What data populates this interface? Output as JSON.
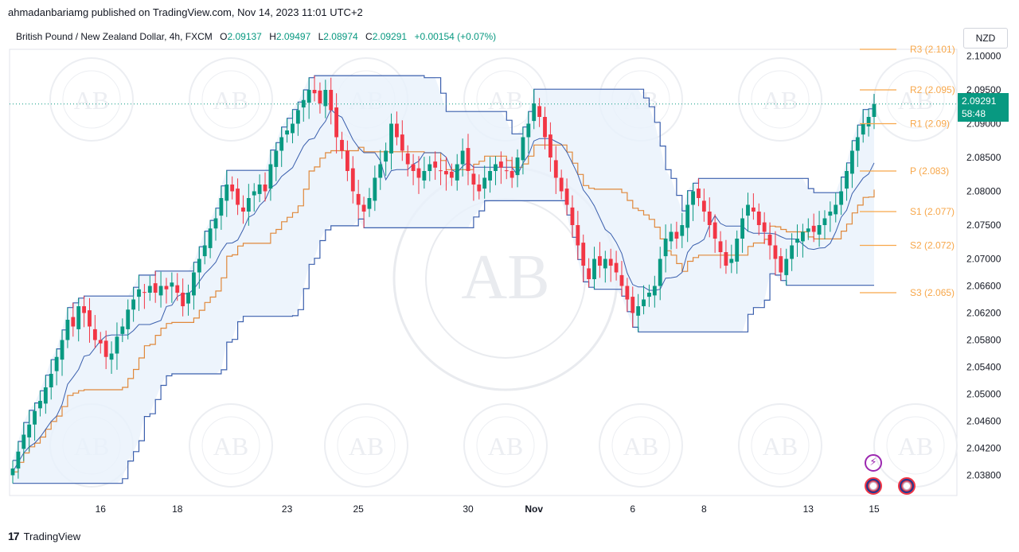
{
  "header": {
    "published": "ahmadanbariamg published on TradingView.com, Nov 14, 2023 11:01 UTC+2"
  },
  "legend": {
    "symbol": "British Pound / New Zealand Dollar, 4h, FXCM",
    "o_label": "O",
    "o_value": "2.09137",
    "h_label": "H",
    "h_value": "2.09497",
    "l_label": "L",
    "l_value": "2.08974",
    "c_label": "C",
    "c_value": "2.09291",
    "change": "+0.00154 (+0.07%)"
  },
  "currency_button": "NZD",
  "price_badge": {
    "price": "2.09291",
    "countdown": "58:48"
  },
  "footer": {
    "brand": "TradingView",
    "logo": "17"
  },
  "icons": {
    "bolt": "bolt-icon",
    "flag": "uk-flag-icon"
  },
  "colors": {
    "up": "#089981",
    "down": "#f23645",
    "pivot": "#f7a74a",
    "channel": "#3a5fad",
    "fill": "#e8f1fb",
    "midline": "#e0883a"
  },
  "chart_data": {
    "type": "candlestick",
    "ylim": [
      2.035,
      2.101
    ],
    "y_ticks": [
      "2.10000",
      "2.09500",
      "2.09000",
      "2.08500",
      "2.08000",
      "2.07500",
      "2.07000",
      "2.06600",
      "2.06200",
      "2.05800",
      "2.05400",
      "2.05000",
      "2.04600",
      "2.04200",
      "2.03800"
    ],
    "x_ticks": [
      {
        "label": "16",
        "bold": false,
        "bar": 16
      },
      {
        "label": "18",
        "bold": false,
        "bar": 30
      },
      {
        "label": "23",
        "bold": false,
        "bar": 50
      },
      {
        "label": "25",
        "bold": false,
        "bar": 63
      },
      {
        "label": "30",
        "bold": false,
        "bar": 83
      },
      {
        "label": "Nov",
        "bold": true,
        "bar": 95
      },
      {
        "label": "6",
        "bold": false,
        "bar": 113
      },
      {
        "label": "8",
        "bold": false,
        "bar": 126
      },
      {
        "label": "13",
        "bold": false,
        "bar": 145
      },
      {
        "label": "15",
        "bold": false,
        "bar": 157
      }
    ],
    "pivots": [
      {
        "label": "R3 (2.101)",
        "value": 2.101
      },
      {
        "label": "R2 (2.095)",
        "value": 2.095
      },
      {
        "label": "R1 (2.09)",
        "value": 2.09
      },
      {
        "label": "P (2.083)",
        "value": 2.083
      },
      {
        "label": "S1 (2.077)",
        "value": 2.077
      },
      {
        "label": "S2 (2.072)",
        "value": 2.072
      },
      {
        "label": "S3 (2.065)",
        "value": 2.065
      }
    ],
    "last_price": 2.09291,
    "closes": [
      2.039,
      2.0415,
      2.044,
      2.0455,
      2.0475,
      2.049,
      2.051,
      2.053,
      2.0555,
      2.058,
      2.061,
      2.06,
      2.063,
      2.062,
      2.06,
      2.058,
      2.0575,
      2.0555,
      2.056,
      2.0585,
      2.06,
      2.0625,
      2.064,
      2.0655,
      2.065,
      2.066,
      2.065,
      2.066,
      2.0655,
      2.0665,
      2.065,
      2.063,
      2.065,
      2.068,
      2.07,
      2.072,
      2.0745,
      2.076,
      2.079,
      2.081,
      2.08,
      2.078,
      2.077,
      2.079,
      2.08,
      2.081,
      2.08,
      2.084,
      2.086,
      2.088,
      2.089,
      2.09,
      2.092,
      2.0935,
      2.095,
      2.0945,
      2.093,
      2.095,
      2.092,
      2.088,
      2.086,
      2.083,
      2.08,
      2.078,
      2.077,
      2.079,
      2.082,
      2.084,
      2.086,
      2.09,
      2.088,
      2.086,
      2.084,
      2.083,
      2.082,
      2.083,
      2.084,
      2.0835,
      2.083,
      2.0825,
      2.082,
      2.084,
      2.086,
      2.083,
      2.081,
      2.08,
      2.082,
      2.083,
      2.084,
      2.0835,
      2.083,
      2.082,
      2.085,
      2.088,
      2.09,
      2.093,
      2.091,
      2.088,
      2.085,
      2.082,
      2.08,
      2.078,
      2.075,
      2.072,
      2.069,
      2.067,
      2.07,
      2.069,
      2.07,
      2.069,
      2.068,
      2.066,
      2.064,
      2.062,
      2.063,
      2.064,
      2.065,
      2.066,
      2.07,
      2.073,
      2.074,
      2.073,
      2.075,
      2.078,
      2.08,
      2.079,
      2.077,
      2.075,
      2.073,
      2.071,
      2.069,
      2.07,
      2.073,
      2.076,
      2.078,
      2.077,
      2.075,
      2.074,
      2.072,
      2.07,
      2.068,
      2.07,
      2.072,
      2.073,
      2.074,
      2.0745,
      2.074,
      2.075,
      2.076,
      2.077,
      2.078,
      2.08,
      2.083,
      2.086,
      2.088,
      2.09,
      2.091,
      2.0929
    ]
  }
}
